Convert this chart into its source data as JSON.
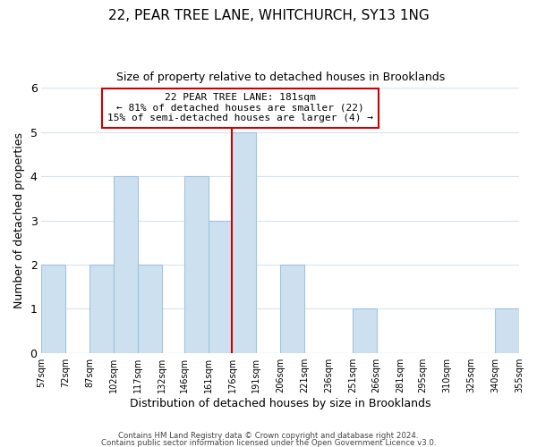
{
  "title": "22, PEAR TREE LANE, WHITCHURCH, SY13 1NG",
  "subtitle": "Size of property relative to detached houses in Brooklands",
  "xlabel": "Distribution of detached houses by size in Brooklands",
  "ylabel": "Number of detached properties",
  "bin_edges": [
    57,
    72,
    87,
    102,
    117,
    132,
    146,
    161,
    176,
    191,
    206,
    221,
    236,
    251,
    266,
    281,
    295,
    310,
    325,
    340,
    355
  ],
  "bin_labels": [
    "57sqm",
    "72sqm",
    "87sqm",
    "102sqm",
    "117sqm",
    "132sqm",
    "146sqm",
    "161sqm",
    "176sqm",
    "191sqm",
    "206sqm",
    "221sqm",
    "236sqm",
    "251sqm",
    "266sqm",
    "281sqm",
    "295sqm",
    "310sqm",
    "325sqm",
    "340sqm",
    "355sqm"
  ],
  "counts": [
    2,
    0,
    2,
    4,
    2,
    0,
    4,
    3,
    5,
    0,
    2,
    0,
    0,
    1,
    0,
    0,
    0,
    0,
    0,
    1
  ],
  "bar_color": "#cce0f0",
  "bar_edge_color": "#a0c4e0",
  "property_line_x": 176,
  "property_line_color": "#cc0000",
  "annotation_line1": "22 PEAR TREE LANE: 181sqm",
  "annotation_line2": "← 81% of detached houses are smaller (22)",
  "annotation_line3": "15% of semi-detached houses are larger (4) →",
  "annotation_box_color": "#ffffff",
  "annotation_box_edge_color": "#cc0000",
  "ylim": [
    0,
    6
  ],
  "yticks": [
    0,
    1,
    2,
    3,
    4,
    5,
    6
  ],
  "footer_line1": "Contains HM Land Registry data © Crown copyright and database right 2024.",
  "footer_line2": "Contains public sector information licensed under the Open Government Licence v3.0.",
  "background_color": "#ffffff",
  "grid_color": "#d8e4f0",
  "title_fontsize": 11,
  "subtitle_fontsize": 9
}
